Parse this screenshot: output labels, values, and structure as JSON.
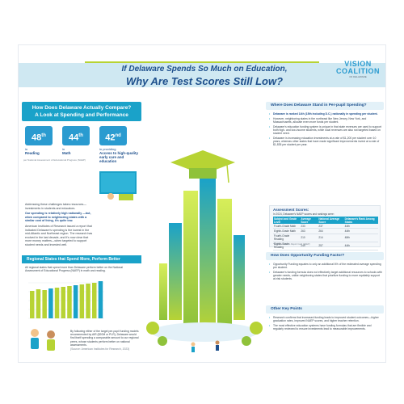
{
  "header": {
    "title_line1": "If Delaware Spends So Much on Education,",
    "title_line2": "Why Are Test Scores Still Low?",
    "logo_line1": "VISION",
    "logo_line2": "COALITION",
    "logo_line3": "OF DELAWARE"
  },
  "left": {
    "banner_line1": "How Does Delaware Actually Compare?",
    "banner_line2": "A Look at Spending and Performance",
    "ranks": [
      {
        "value": "48",
        "suffix": "th",
        "label_pre": "in",
        "label": "Reading"
      },
      {
        "value": "44",
        "suffix": "th",
        "label_pre": "in",
        "label": "Math"
      },
      {
        "value": "42",
        "suffix": "nd",
        "label_pre": "in providing",
        "label": "Access to high-quality early care and education"
      }
    ],
    "rank_note": "per National Assessment of Educational Progress (NAEP)",
    "address_text_1": "Addressing these challenges takes resources—investments in students and educators.",
    "address_text_2": "Our spending is relatively high nationally —but, when compared to neighboring states with a similar cost of living, it's quite low.",
    "address_text_3": "American Institutes of Research issued a report that indicated Delaware's spending is the lowest in the mid-Atlantic and Northeast region. The research has evolved in the last decade, and it's now clear that more money matters—when targeted to support student needs and invested well.",
    "chart_banner": "Regional States that Spend More, Perform Better",
    "chart_text": "All regional states that spend more than Delaware perform better on the National Assessment of Educational Progress (NAEP) in math and reading.",
    "bottom_text": "By following either of the target per-pupil funding models recommended by AIR ($20M or PLR), Delaware would find itself spending a comparable amount to our regional peers, whose students perform better on national assessments.",
    "bottom_source": "(Source: American Institutes for Research, 2023)"
  },
  "right": {
    "q1": "Where Does Delaware Stand in Per-pupil Spending?",
    "q1_bullets": [
      "Delaware is ranked 14th (15th including D.C.) nationally in spending per student.",
      "However, neighboring states in the northeast like New Jersey, New York, and Massachusetts, allocate even more funds per student.",
      "Delaware's education funding system is unique in that state revenues are used to support both high- and low-income students, while local revenues are also not targeted based on student need.",
      "Delaware is increasing education investments at a rate of $1,200 per student over 10 years, whereas other states that have made significant improvements invest at a rate of $1,835 per student per year."
    ],
    "naep_title": "Assessment Scores:",
    "naep_sub": "In 2024, Delaware's NAEP scores and rankings were:",
    "naep_headers": [
      "Subject and Grade Level",
      "Average Score",
      "National Average Score",
      "Delaware's Rank Among States"
    ],
    "naep_rows": [
      [
        "Fourth-Grade Math",
        "233",
        "237",
        "44th"
      ],
      [
        "Eighth-Grade Math",
        "263",
        "264",
        "44th"
      ],
      [
        "Fourth-Grade Reading",
        "210",
        "214",
        "48th"
      ],
      [
        "Eighth-Grade Reading",
        "249",
        "257",
        "44th"
      ]
    ],
    "naep_note": "*Sources: Nation's Report Card (NAEP)",
    "q2": "How Does Opportunity Funding Factor?",
    "q2_bullets": [
      "Opportunity Funding equates to only an additional 6% of the estimated average spending per student.",
      "Delaware's funding formula does not effectively target additional resources to schools with greater needs, unlike neighboring states that prioritize funding to more equitably support at-risk students."
    ],
    "q3": "Other Key Points",
    "q3_bullets": [
      "Research confirms that increased funding leads to improved student outcomes—higher graduation rates, improved NAEP scores, and higher teacher retention.",
      "The most effective education systems have funding formulas that are flexible and regularly reviewed to ensure investments lead to measurable improvements."
    ]
  },
  "colors": {
    "primary": "#1aa2c9",
    "navy": "#1d4f8c",
    "lime": "#b7d334"
  }
}
